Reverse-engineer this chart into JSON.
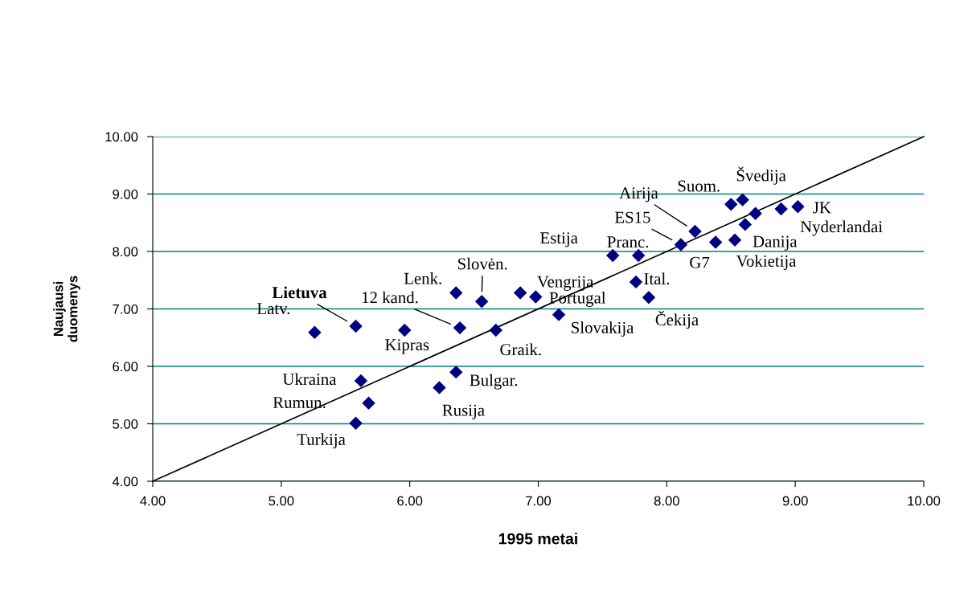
{
  "chart_data": {
    "type": "scatter",
    "xlabel": "1995 metai",
    "ylabel": "Naujausi\nduomenys",
    "xlim": [
      4,
      10
    ],
    "ylim": [
      4,
      10
    ],
    "xticks": [
      {
        "value": 4,
        "label": "4.00"
      },
      {
        "value": 5,
        "label": "5.00"
      },
      {
        "value": 6,
        "label": "6.00"
      },
      {
        "value": 7,
        "label": "7.00"
      },
      {
        "value": 8,
        "label": "8.00"
      },
      {
        "value": 9,
        "label": "9.00"
      },
      {
        "value": 10,
        "label": "10.00"
      }
    ],
    "yticks": [
      {
        "value": 4,
        "label": "4.00"
      },
      {
        "value": 5,
        "label": "5.00"
      },
      {
        "value": 6,
        "label": "6.00"
      },
      {
        "value": 7,
        "label": "7.00"
      },
      {
        "value": 8,
        "label": "8.00"
      },
      {
        "value": 9,
        "label": "9.00"
      },
      {
        "value": 10,
        "label": "10.00"
      }
    ],
    "grid": "y",
    "marker": "diamond",
    "series": [
      {
        "color": "#000080",
        "x": [
          5.58,
          5.26,
          5.96,
          6.36,
          6.56,
          6.39,
          6.67,
          6.86,
          6.98,
          7.16,
          5.62,
          5.68,
          5.58,
          6.36,
          6.23,
          7.58,
          7.78,
          7.76,
          7.86,
          8.11,
          8.22,
          8.38,
          8.53,
          8.61,
          8.5,
          8.59,
          9.02,
          8.89,
          8.69
        ],
        "values": [
          6.7,
          6.59,
          6.63,
          7.28,
          7.13,
          6.67,
          6.63,
          7.28,
          7.21,
          6.9,
          5.75,
          5.36,
          5.01,
          5.9,
          5.63,
          7.93,
          7.93,
          7.47,
          7.2,
          8.12,
          8.35,
          8.16,
          8.2,
          8.47,
          8.82,
          8.9,
          8.78,
          8.74,
          8.66
        ]
      },
      {
        "type": "line",
        "color": "#000000",
        "marker": "none",
        "line_style": "solid",
        "x": [
          4,
          10
        ],
        "values": [
          4,
          10
        ]
      }
    ],
    "annotations": [
      {
        "text": "Lietuva",
        "x": 5.58,
        "y": 6.7
      },
      {
        "text": "Latv.",
        "x": 5.26,
        "y": 6.59
      },
      {
        "text": "Kipras",
        "x": 5.96,
        "y": 6.63
      },
      {
        "text": "Lenk.",
        "x": 6.36,
        "y": 7.28
      },
      {
        "text": "Slovėn.",
        "x": 6.56,
        "y": 7.13
      },
      {
        "text": "12 kand.",
        "x": 6.39,
        "y": 6.67
      },
      {
        "text": "Graik.",
        "x": 6.67,
        "y": 6.63
      },
      {
        "text": "Vengrija",
        "x": 6.86,
        "y": 7.28
      },
      {
        "text": "Portugal",
        "x": 6.98,
        "y": 7.21
      },
      {
        "text": "Slovakija",
        "x": 7.16,
        "y": 6.9
      },
      {
        "text": "Ukraina",
        "x": 5.62,
        "y": 5.75
      },
      {
        "text": "Rumun.",
        "x": 5.68,
        "y": 5.36
      },
      {
        "text": "Turkija",
        "x": 5.58,
        "y": 5.01
      },
      {
        "text": "Bulgar.",
        "x": 6.36,
        "y": 5.9
      },
      {
        "text": "Rusija",
        "x": 6.23,
        "y": 5.63
      },
      {
        "text": "Estija",
        "x": 7.58,
        "y": 7.93
      },
      {
        "text": "Pranc.",
        "x": 7.78,
        "y": 7.93
      },
      {
        "text": "Ital.",
        "x": 7.76,
        "y": 7.47
      },
      {
        "text": "Čekija",
        "x": 7.86,
        "y": 7.2
      },
      {
        "text": "ES15",
        "x": 8.11,
        "y": 8.12
      },
      {
        "text": "Airija",
        "x": 8.22,
        "y": 8.35
      },
      {
        "text": "G7",
        "x": 8.38,
        "y": 8.16
      },
      {
        "text": "Vokietija",
        "x": 8.53,
        "y": 8.2
      },
      {
        "text": "Danija",
        "x": 8.61,
        "y": 8.47
      },
      {
        "text": "Suom.",
        "x": 8.5,
        "y": 8.82
      },
      {
        "text": "Švedija",
        "x": 8.59,
        "y": 8.9
      },
      {
        "text": "JK",
        "x": 9.02,
        "y": 8.78
      },
      {
        "text": "Nyderlandai",
        "x": 8.89,
        "y": 8.74
      }
    ]
  }
}
